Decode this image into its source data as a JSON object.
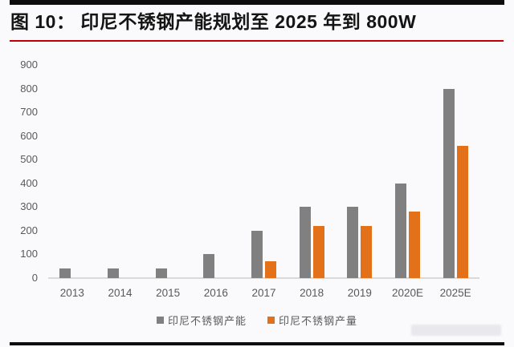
{
  "header": {
    "title": "图 10：  印尼不锈钢产能规划至 2025 年到 800W"
  },
  "colors": {
    "capacity_bar": "#808080",
    "output_bar": "#E2711A",
    "title_underline": "#C00000",
    "border_bars": "#0D0D0D",
    "axis_line": "#D9D9D9",
    "tick_label": "#595959"
  },
  "chart_data": {
    "type": "bar",
    "title": "印尼不锈钢产能规划至 2025 年到 800W",
    "categories": [
      "2013",
      "2014",
      "2015",
      "2016",
      "2017",
      "2018",
      "2019",
      "2020E",
      "2025E"
    ],
    "series": [
      {
        "name": "印尼不锈钢产能",
        "color": "#808080",
        "values": [
          40,
          40,
          40,
          100,
          200,
          300,
          300,
          400,
          800
        ]
      },
      {
        "name": "印尼不锈钢产量",
        "color": "#E2711A",
        "values": [
          null,
          null,
          null,
          null,
          70,
          220,
          220,
          280,
          560
        ]
      }
    ],
    "xlabel": "",
    "ylabel": "",
    "ylim": [
      0,
      900
    ],
    "ytick_step": 100,
    "yticks": [
      0,
      100,
      200,
      300,
      400,
      500,
      600,
      700,
      800,
      900
    ],
    "grid": false,
    "legend_position": "bottom"
  }
}
